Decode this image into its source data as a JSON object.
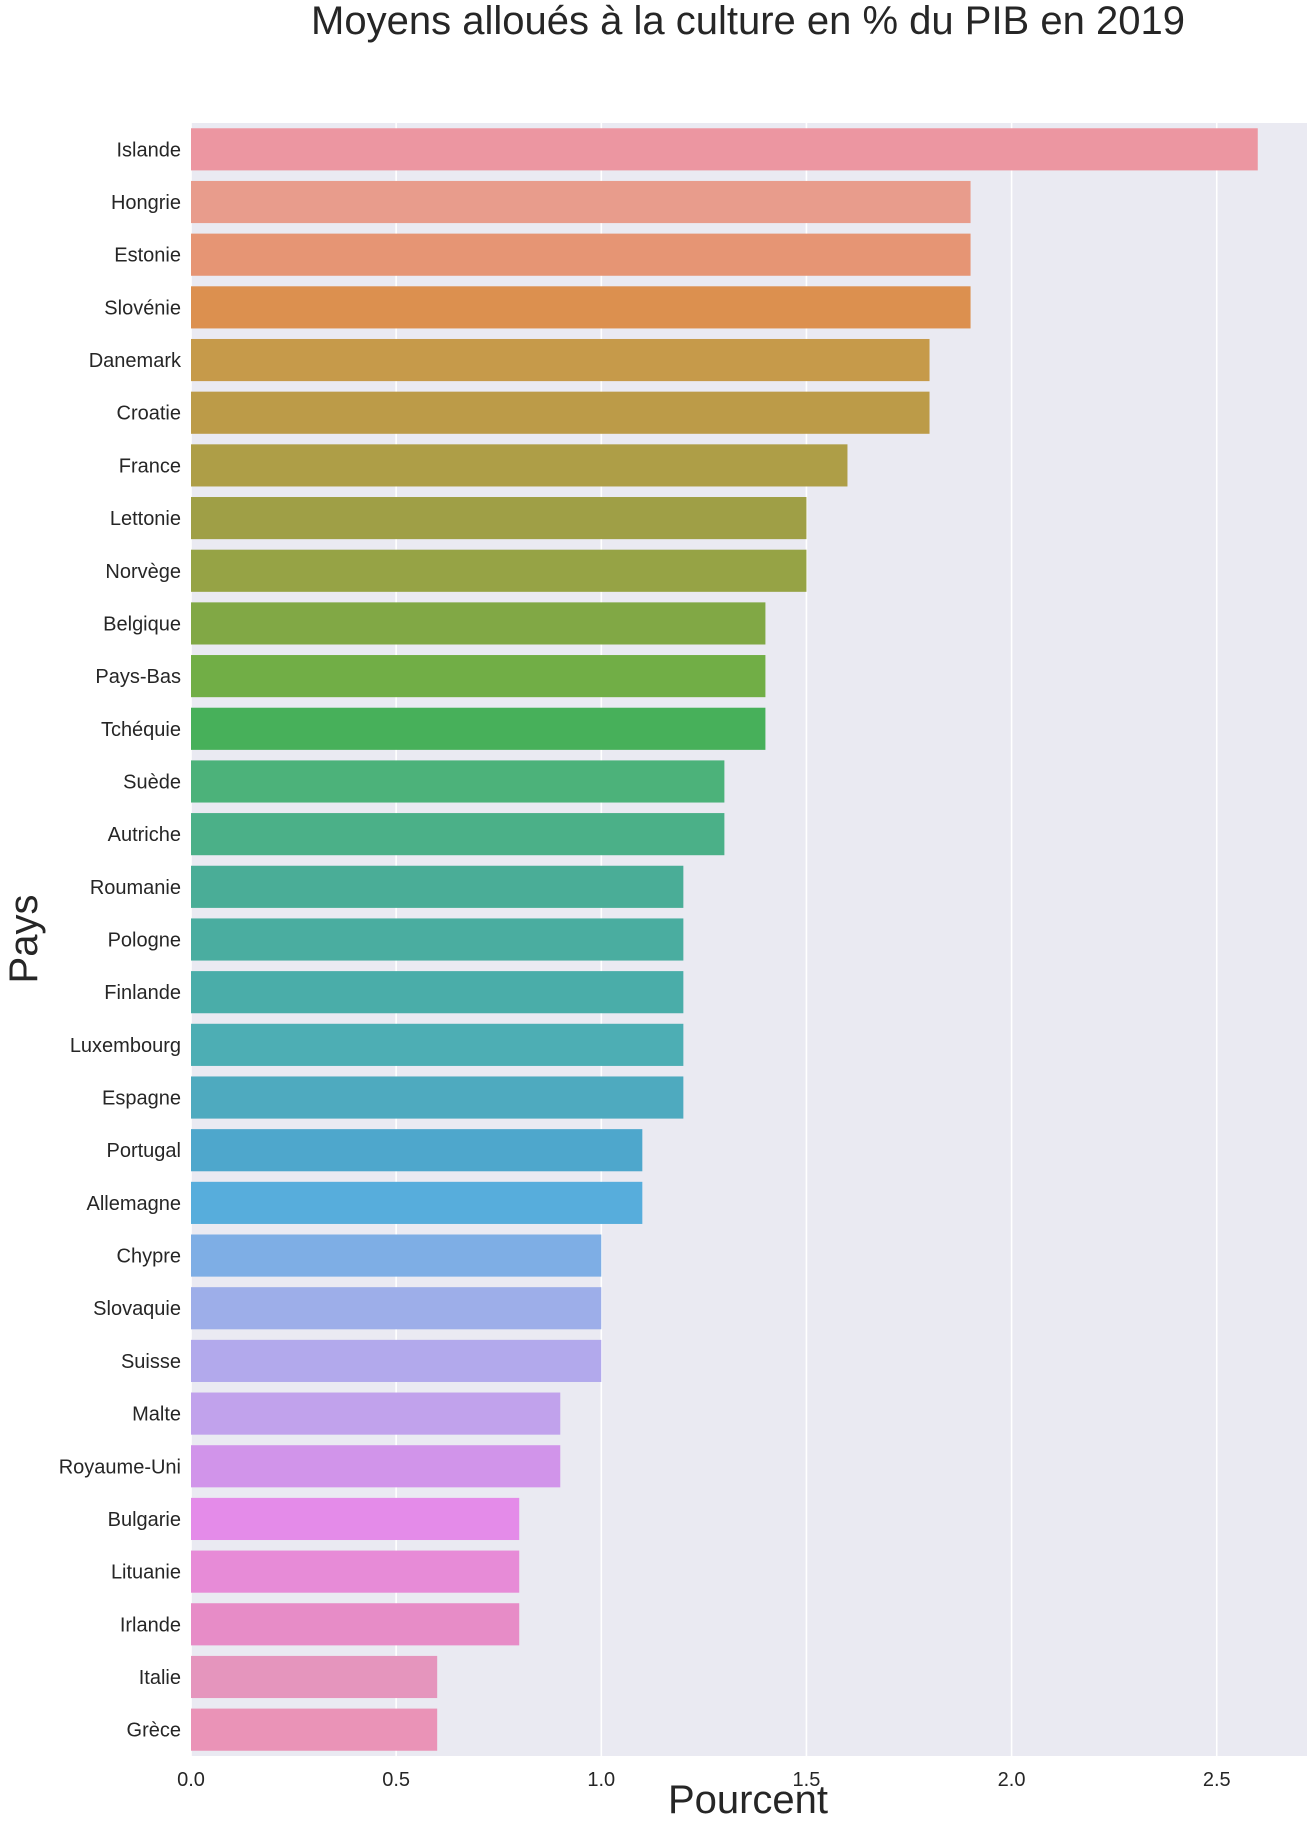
{
  "chart_data": {
    "type": "bar",
    "orientation": "horizontal",
    "title": "Moyens alloués à la culture en % du PIB en 2019",
    "xlabel": "Pourcent",
    "ylabel": "Pays",
    "xlim": [
      0,
      2.72
    ],
    "xticks": [
      0.0,
      0.5,
      1.0,
      1.5,
      2.0,
      2.5
    ],
    "xtick_labels": [
      "0.0",
      "0.5",
      "1.0",
      "1.5",
      "2.0",
      "2.5"
    ],
    "grid": true,
    "background": "#eaeaf2",
    "categories": [
      "Islande",
      "Hongrie",
      "Estonie",
      "Slovénie",
      "Danemark",
      "Croatie",
      "France",
      "Lettonie",
      "Norvège",
      "Belgique",
      "Pays-Bas",
      "Tchéquie",
      "Suède",
      "Autriche",
      "Roumanie",
      "Pologne",
      "Finlande",
      "Luxembourg",
      "Espagne",
      "Portugal",
      "Allemagne",
      "Chypre",
      "Slovaquie",
      "Suisse",
      "Malte",
      "Royaume-Uni",
      "Bulgarie",
      "Lituanie",
      "Irlande",
      "Italie",
      "Grèce"
    ],
    "values": [
      2.6,
      1.9,
      1.9,
      1.9,
      1.8,
      1.8,
      1.6,
      1.5,
      1.5,
      1.4,
      1.4,
      1.4,
      1.3,
      1.3,
      1.2,
      1.2,
      1.2,
      1.2,
      1.2,
      1.1,
      1.1,
      1.0,
      1.0,
      1.0,
      0.9,
      0.9,
      0.8,
      0.8,
      0.8,
      0.6,
      0.6
    ],
    "colors": [
      "#ec96a1",
      "#e89c8c",
      "#e69574",
      "#dc904f",
      "#c69a4a",
      "#bc9b48",
      "#ae9e47",
      "#9f9f46",
      "#96a345",
      "#81a845",
      "#71ae46",
      "#47b05a",
      "#4cb27a",
      "#4bb088",
      "#4aad97",
      "#4aada0",
      "#4aada9",
      "#4daeb4",
      "#4eaabf",
      "#4ea7cc",
      "#57addc",
      "#7eaee5",
      "#9daee9",
      "#b2a9ec",
      "#c1a2ec",
      "#d194ea",
      "#e48be9",
      "#e78bd7",
      "#e78cc7",
      "#e595bd",
      "#ea93b7"
    ]
  }
}
